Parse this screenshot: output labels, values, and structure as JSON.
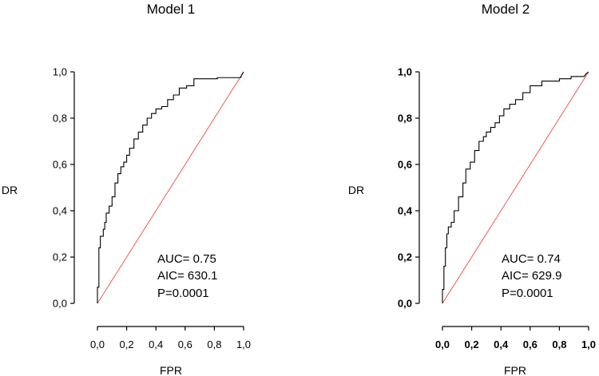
{
  "chart_data": [
    {
      "type": "line",
      "title": "Model 1",
      "xlabel": "FPR",
      "ylabel": "DR",
      "xlim": [
        0,
        1
      ],
      "ylim": [
        0,
        1
      ],
      "xticks": [
        "0,0",
        "0,2",
        "0,4",
        "0,6",
        "0,8",
        "1,0"
      ],
      "yticks": [
        "0,0",
        "0,2",
        "0,4",
        "0,6",
        "0,8",
        "1,0"
      ],
      "tick_font_weight": "normal",
      "annotations": [
        "AUC= 0.75",
        "AIC= 630.1",
        "P=0.0001"
      ],
      "series": [
        {
          "name": "ROC",
          "color": "#000000",
          "x": [
            0.0,
            0.0,
            0.01,
            0.01,
            0.02,
            0.02,
            0.04,
            0.04,
            0.05,
            0.05,
            0.06,
            0.06,
            0.08,
            0.08,
            0.1,
            0.1,
            0.12,
            0.12,
            0.14,
            0.14,
            0.16,
            0.16,
            0.18,
            0.18,
            0.2,
            0.2,
            0.22,
            0.22,
            0.25,
            0.25,
            0.28,
            0.28,
            0.31,
            0.31,
            0.34,
            0.34,
            0.37,
            0.37,
            0.4,
            0.4,
            0.44,
            0.44,
            0.48,
            0.48,
            0.52,
            0.52,
            0.56,
            0.56,
            0.61,
            0.61,
            0.66,
            0.66,
            0.82,
            0.82,
            0.98,
            0.99,
            1.0
          ],
          "y": [
            0.0,
            0.07,
            0.07,
            0.24,
            0.24,
            0.29,
            0.29,
            0.32,
            0.32,
            0.35,
            0.35,
            0.39,
            0.39,
            0.42,
            0.42,
            0.46,
            0.46,
            0.52,
            0.52,
            0.56,
            0.56,
            0.59,
            0.59,
            0.61,
            0.61,
            0.64,
            0.64,
            0.67,
            0.67,
            0.71,
            0.71,
            0.74,
            0.74,
            0.77,
            0.77,
            0.8,
            0.8,
            0.82,
            0.82,
            0.84,
            0.84,
            0.85,
            0.85,
            0.88,
            0.88,
            0.9,
            0.9,
            0.93,
            0.93,
            0.94,
            0.94,
            0.97,
            0.97,
            0.975,
            0.975,
            0.99,
            1.0
          ]
        },
        {
          "name": "Reference",
          "color": "#e8392f",
          "x": [
            0,
            1
          ],
          "y": [
            0,
            1
          ]
        }
      ]
    },
    {
      "type": "line",
      "title": "Model 2",
      "xlabel": "FPR",
      "ylabel": "DR",
      "xlim": [
        0,
        1
      ],
      "ylim": [
        0,
        1
      ],
      "xticks": [
        "0,0",
        "0,2",
        "0,4",
        "0,6",
        "0,8",
        "1,0"
      ],
      "yticks": [
        "0,0",
        "0,2",
        "0,4",
        "0,6",
        "0,8",
        "1,0"
      ],
      "tick_font_weight": "bold",
      "annotations": [
        "AUC= 0.74",
        "AIC= 629.9",
        "P=0.0001"
      ],
      "series": [
        {
          "name": "ROC",
          "color": "#000000",
          "x": [
            0.0,
            0.0,
            0.01,
            0.01,
            0.02,
            0.02,
            0.03,
            0.03,
            0.04,
            0.04,
            0.06,
            0.06,
            0.08,
            0.08,
            0.11,
            0.11,
            0.14,
            0.14,
            0.16,
            0.16,
            0.19,
            0.19,
            0.22,
            0.22,
            0.25,
            0.25,
            0.28,
            0.28,
            0.3,
            0.3,
            0.33,
            0.33,
            0.36,
            0.36,
            0.39,
            0.39,
            0.42,
            0.42,
            0.46,
            0.46,
            0.5,
            0.5,
            0.55,
            0.55,
            0.6,
            0.6,
            0.68,
            0.68,
            0.8,
            0.8,
            0.88,
            0.88,
            0.97,
            0.98,
            1.0
          ],
          "y": [
            0.0,
            0.06,
            0.06,
            0.16,
            0.16,
            0.24,
            0.24,
            0.3,
            0.3,
            0.33,
            0.33,
            0.35,
            0.35,
            0.4,
            0.4,
            0.46,
            0.46,
            0.52,
            0.52,
            0.58,
            0.58,
            0.61,
            0.61,
            0.66,
            0.66,
            0.7,
            0.7,
            0.72,
            0.72,
            0.74,
            0.74,
            0.76,
            0.76,
            0.78,
            0.78,
            0.81,
            0.81,
            0.84,
            0.84,
            0.86,
            0.86,
            0.88,
            0.88,
            0.91,
            0.91,
            0.94,
            0.94,
            0.96,
            0.96,
            0.97,
            0.97,
            0.98,
            0.98,
            0.99,
            1.0
          ]
        },
        {
          "name": "Reference",
          "color": "#e8392f",
          "x": [
            0,
            1
          ],
          "y": [
            0,
            1
          ]
        }
      ]
    }
  ]
}
